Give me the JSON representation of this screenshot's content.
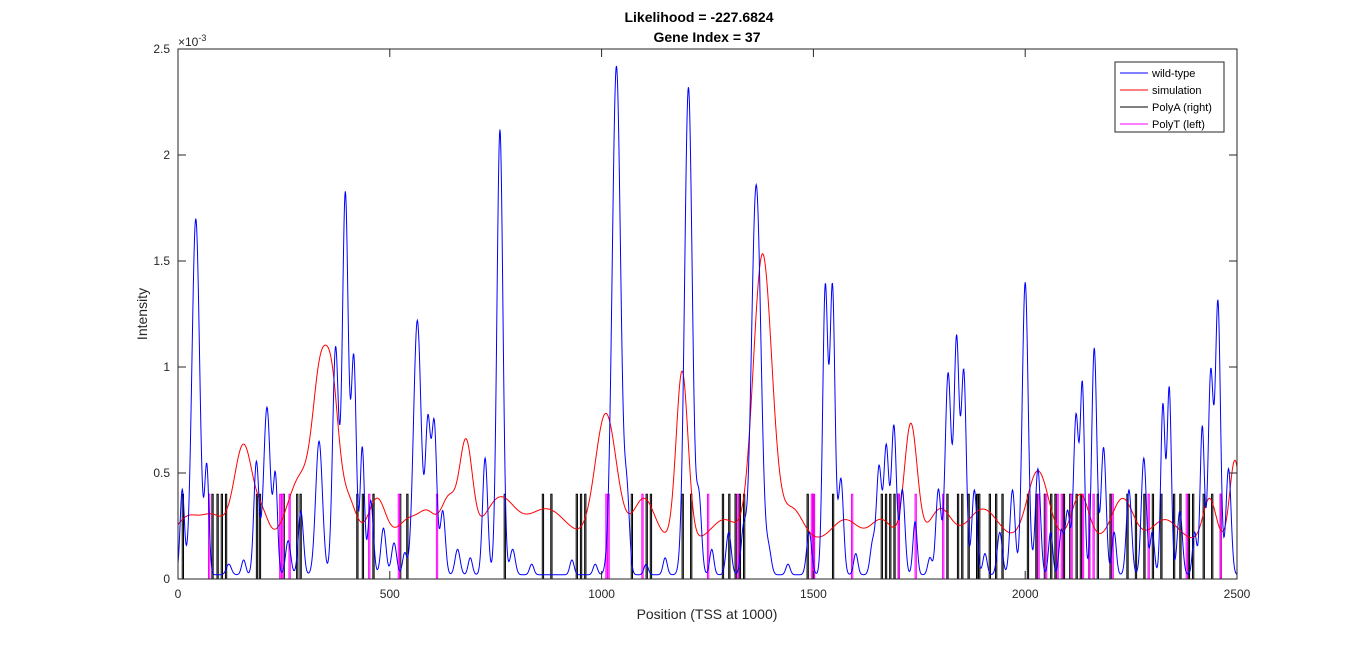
{
  "chart_data": {
    "type": "line",
    "title": [
      "Likelihood = -227.6824",
      "Gene Index = 37"
    ],
    "xlabel": "Position (TSS at 1000)",
    "ylabel": "Intensity",
    "xlim": [
      0,
      2500
    ],
    "ylim": [
      0,
      0.0025
    ],
    "y_exponent_label": "×10",
    "y_exponent": "-3",
    "xticks": [
      0,
      500,
      1000,
      1500,
      2000,
      2500
    ],
    "xtick_labels": [
      "0",
      "500",
      "1000",
      "1500",
      "2000",
      "2500"
    ],
    "yticks": [
      0,
      0.0005,
      0.001,
      0.0015,
      0.002,
      0.0025
    ],
    "ytick_labels": [
      "0",
      "0.5",
      "1",
      "1.5",
      "2",
      "2.5"
    ],
    "grid": false,
    "legend_position": "top-right",
    "colors": {
      "wild-type": "#0000ff",
      "simulation": "#ff0000",
      "PolyA (right)": "#000000",
      "PolyT (left)": "#ff00ff"
    },
    "series": [
      {
        "name": "wild-type",
        "kind": "peaks",
        "base": 2e-05,
        "peaks": [
          [
            10,
            0.0004,
            5
          ],
          [
            42,
            0.00168,
            9
          ],
          [
            68,
            0.0005,
            5
          ],
          [
            120,
            5e-05,
            6
          ],
          [
            155,
            7e-05,
            5
          ],
          [
            185,
            0.00053,
            6
          ],
          [
            210,
            0.00079,
            8
          ],
          [
            230,
            0.00045,
            5
          ],
          [
            260,
            0.00016,
            6
          ],
          [
            290,
            0.0003,
            6
          ],
          [
            333,
            0.00063,
            8
          ],
          [
            372,
            0.00107,
            7
          ],
          [
            395,
            0.0018,
            7
          ],
          [
            415,
            0.00101,
            6
          ],
          [
            435,
            0.0006,
            5
          ],
          [
            455,
            0.00035,
            6
          ],
          [
            485,
            0.00022,
            6
          ],
          [
            510,
            0.00015,
            6
          ],
          [
            535,
            0.0001,
            5
          ],
          [
            565,
            0.0012,
            9
          ],
          [
            590,
            0.0007,
            6
          ],
          [
            605,
            0.0007,
            6
          ],
          [
            625,
            0.0003,
            6
          ],
          [
            660,
            0.00012,
            6
          ],
          [
            690,
            8e-05,
            5
          ],
          [
            725,
            0.00055,
            6
          ],
          [
            760,
            0.0021,
            7
          ],
          [
            790,
            0.00012,
            6
          ],
          [
            835,
            5e-05,
            5
          ],
          [
            930,
            7e-05,
            5
          ],
          [
            985,
            5e-05,
            5
          ],
          [
            1035,
            0.0024,
            10
          ],
          [
            1060,
            0.00035,
            6
          ],
          [
            1105,
            5e-05,
            5
          ],
          [
            1150,
            8e-05,
            5
          ],
          [
            1205,
            0.0023,
            9
          ],
          [
            1230,
            0.00035,
            6
          ],
          [
            1260,
            0.00012,
            5
          ],
          [
            1300,
            0.0002,
            6
          ],
          [
            1335,
            0.0002,
            6
          ],
          [
            1365,
            0.00184,
            11
          ],
          [
            1395,
            0.0001,
            6
          ],
          [
            1440,
            5e-05,
            5
          ],
          [
            1490,
            0.0002,
            6
          ],
          [
            1528,
            0.00135,
            6
          ],
          [
            1545,
            0.00135,
            6
          ],
          [
            1565,
            0.00045,
            6
          ],
          [
            1600,
            0.0001,
            5
          ],
          [
            1640,
            0.00015,
            6
          ],
          [
            1655,
            0.0005,
            6
          ],
          [
            1672,
            0.0006,
            6
          ],
          [
            1690,
            0.0007,
            6
          ],
          [
            1710,
            0.0004,
            6
          ],
          [
            1740,
            0.00025,
            5
          ],
          [
            1775,
            8e-05,
            5
          ],
          [
            1795,
            0.0004,
            6
          ],
          [
            1818,
            0.00095,
            7
          ],
          [
            1838,
            0.0011,
            6
          ],
          [
            1855,
            0.00095,
            6
          ],
          [
            1880,
            0.0004,
            6
          ],
          [
            1905,
            0.0001,
            5
          ],
          [
            1940,
            0.0002,
            6
          ],
          [
            1970,
            0.0004,
            6
          ],
          [
            2000,
            0.00138,
            7
          ],
          [
            2030,
            0.0005,
            6
          ],
          [
            2060,
            0.0002,
            5
          ],
          [
            2085,
            0.0002,
            5
          ],
          [
            2100,
            0.0003,
            6
          ],
          [
            2120,
            0.00075,
            6
          ],
          [
            2135,
            0.00088,
            5
          ],
          [
            2163,
            0.00107,
            6
          ],
          [
            2185,
            0.0006,
            6
          ],
          [
            2210,
            0.0002,
            5
          ],
          [
            2245,
            0.0004,
            6
          ],
          [
            2280,
            0.00055,
            6
          ],
          [
            2300,
            0.0002,
            5
          ],
          [
            2325,
            0.0008,
            5
          ],
          [
            2340,
            0.00088,
            5
          ],
          [
            2365,
            0.0003,
            6
          ],
          [
            2400,
            0.0002,
            5
          ],
          [
            2418,
            0.0007,
            5
          ],
          [
            2438,
            0.00095,
            6
          ],
          [
            2455,
            0.00128,
            6
          ],
          [
            2480,
            0.0005,
            6
          ]
        ]
      },
      {
        "name": "simulation",
        "kind": "peaks",
        "base": 0.00018,
        "peaks": [
          [
            20,
            0.0001,
            25
          ],
          [
            80,
            0.00012,
            30
          ],
          [
            155,
            0.00045,
            22
          ],
          [
            200,
            0.0001,
            15
          ],
          [
            290,
            0.0003,
            30
          ],
          [
            337,
            0.0007,
            18
          ],
          [
            365,
            0.00055,
            15
          ],
          [
            400,
            0.0002,
            20
          ],
          [
            470,
            0.0002,
            20
          ],
          [
            545,
            0.0001,
            25
          ],
          [
            590,
            0.00012,
            20
          ],
          [
            640,
            0.0002,
            18
          ],
          [
            680,
            0.00045,
            15
          ],
          [
            760,
            0.0002,
            35
          ],
          [
            870,
            0.00015,
            45
          ],
          [
            1010,
            0.0006,
            25
          ],
          [
            1100,
            0.0002,
            25
          ],
          [
            1190,
            0.0008,
            14
          ],
          [
            1290,
            0.0001,
            30
          ],
          [
            1380,
            0.00135,
            22
          ],
          [
            1450,
            0.00015,
            25
          ],
          [
            1575,
            0.0001,
            30
          ],
          [
            1660,
            0.0001,
            25
          ],
          [
            1730,
            0.00055,
            15
          ],
          [
            1800,
            0.00015,
            25
          ],
          [
            1900,
            0.00015,
            35
          ],
          [
            2030,
            0.00033,
            25
          ],
          [
            2130,
            0.00022,
            20
          ],
          [
            2230,
            0.0002,
            25
          ],
          [
            2330,
            0.0001,
            30
          ],
          [
            2435,
            0.0002,
            15
          ],
          [
            2495,
            0.00038,
            12
          ]
        ]
      },
      {
        "name": "PolyA (right)",
        "kind": "pulses",
        "height": 0.0004,
        "width": 3,
        "positions": [
          10,
          80,
          92,
          102,
          112,
          185,
          192,
          248,
          280,
          288,
          422,
          435,
          460,
          523,
          540,
          770,
          860,
          880,
          940,
          950,
          960,
          1070,
          1105,
          1115,
          1190,
          1210,
          1285,
          1300,
          1315,
          1325,
          1335,
          1485,
          1498,
          1545,
          1660,
          1670,
          1680,
          1690,
          1700,
          1815,
          1840,
          1850,
          1865,
          1885,
          1890,
          1915,
          1930,
          1945,
          2005,
          2025,
          2045,
          2060,
          2070,
          2090,
          2105,
          2120,
          2130,
          2150,
          2170,
          2200,
          2240,
          2260,
          2280,
          2300,
          2320,
          2350,
          2365,
          2385,
          2395,
          2420,
          2440,
          2460
        ]
      },
      {
        "name": "PolyT (left)",
        "kind": "pulses",
        "height": 0.0004,
        "width": 3,
        "positions": [
          72,
          240,
          245,
          262,
          450,
          520,
          610,
          1010,
          1015,
          1095,
          1250,
          1320,
          1495,
          1500,
          1590,
          1700,
          1740,
          1805,
          2030,
          2048,
          2075,
          2085,
          2108,
          2135,
          2150,
          2160,
          2205,
          2290,
          2380,
          2460
        ]
      }
    ]
  }
}
